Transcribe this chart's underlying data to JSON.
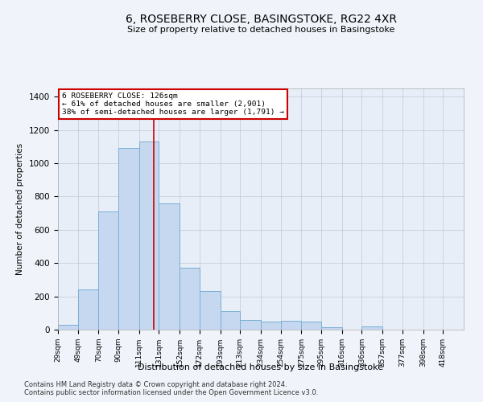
{
  "title": "6, ROSEBERRY CLOSE, BASINGSTOKE, RG22 4XR",
  "subtitle": "Size of property relative to detached houses in Basingstoke",
  "xlabel": "Distribution of detached houses by size in Basingstoke",
  "ylabel": "Number of detached properties",
  "footnote1": "Contains HM Land Registry data © Crown copyright and database right 2024.",
  "footnote2": "Contains public sector information licensed under the Open Government Licence v3.0.",
  "bar_edges": [
    29,
    49,
    70,
    90,
    111,
    131,
    152,
    172,
    193,
    213,
    234,
    254,
    275,
    295,
    316,
    336,
    357,
    377,
    398,
    418,
    439
  ],
  "bar_heights": [
    30,
    240,
    710,
    1090,
    1130,
    760,
    370,
    230,
    110,
    60,
    50,
    55,
    50,
    15,
    0,
    20,
    0,
    0,
    0,
    0
  ],
  "bar_color": "#c5d8f0",
  "bar_edge_color": "#7aafd4",
  "grid_color": "#c0c8d8",
  "bg_color": "#e8eef8",
  "property_size": 126,
  "annotation_text": "6 ROSEBERRY CLOSE: 126sqm\n← 61% of detached houses are smaller (2,901)\n38% of semi-detached houses are larger (1,791) →",
  "annotation_box_color": "#ffffff",
  "annotation_box_edge": "#cc0000",
  "red_line_color": "#cc0000",
  "ylim": [
    0,
    1450
  ],
  "yticks": [
    0,
    200,
    400,
    600,
    800,
    1000,
    1200,
    1400
  ],
  "fig_bg": "#f0f4fa"
}
